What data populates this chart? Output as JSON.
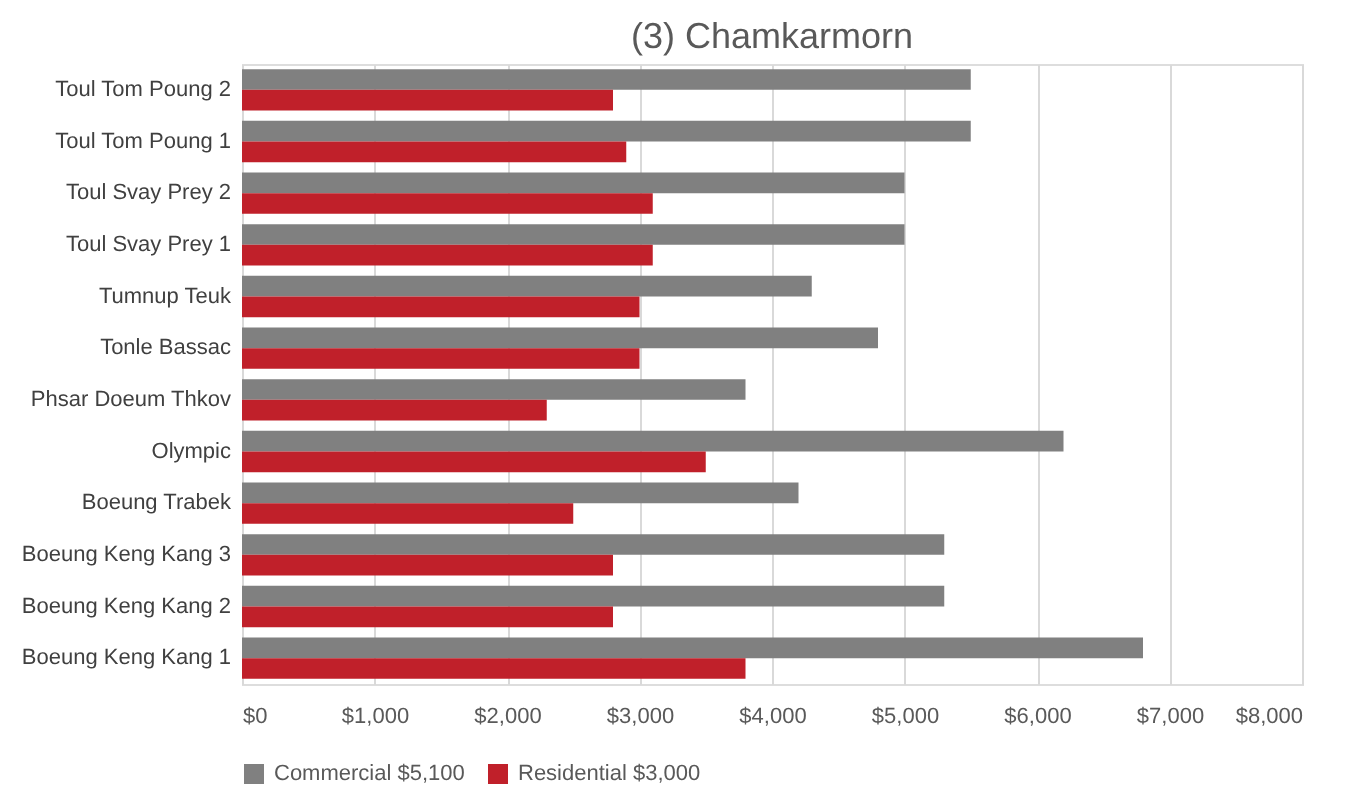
{
  "chart_data": {
    "type": "bar",
    "orientation": "horizontal",
    "title": "(3) Chamkarmorn",
    "categories": [
      "Toul Tom Poung 2",
      "Toul Tom Poung 1",
      "Toul Svay Prey 2",
      "Toul Svay Prey 1",
      "Tumnup Teuk",
      "Tonle Bassac",
      "Phsar Doeum Thkov",
      "Olympic",
      "Boeung Trabek",
      "Boeung Keng Kang 3",
      "Boeung Keng Kang 2",
      "Boeung Keng Kang 1"
    ],
    "series": [
      {
        "name": "Commercial $5,100",
        "color": "#808080",
        "values": [
          5500,
          5500,
          5000,
          5000,
          4300,
          4800,
          3800,
          6200,
          4200,
          5300,
          5300,
          6800
        ]
      },
      {
        "name": "Residential $3,000",
        "color": "#c0202a",
        "values": [
          2800,
          2900,
          3100,
          3100,
          3000,
          3000,
          2300,
          3500,
          2500,
          2800,
          2800,
          3800
        ]
      }
    ],
    "xlim": [
      0,
      8000
    ],
    "xticks": [
      {
        "value": 0,
        "label": "$0"
      },
      {
        "value": 1000,
        "label": "$1,000"
      },
      {
        "value": 2000,
        "label": "$2,000"
      },
      {
        "value": 3000,
        "label": "$3,000"
      },
      {
        "value": 4000,
        "label": "$4,000"
      },
      {
        "value": 5000,
        "label": "$5,000"
      },
      {
        "value": 6000,
        "label": "$6,000"
      },
      {
        "value": 7000,
        "label": "$7,000"
      },
      {
        "value": 8000,
        "label": "$8,000"
      }
    ],
    "grid": "x",
    "legend": "bottom"
  }
}
